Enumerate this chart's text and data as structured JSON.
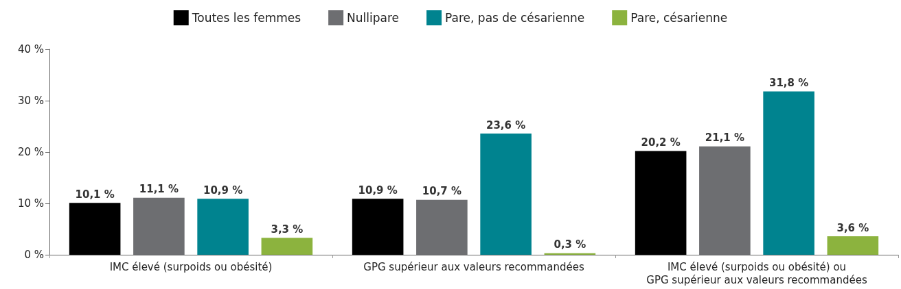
{
  "chart_data": {
    "type": "bar",
    "categories": [
      "IMC élevé (surpoids ou obésité)",
      "GPG supérieur aux valeurs recommandées",
      "IMC élevé (surpoids ou obésité) ou\nGPG supérieur aux valeurs recommandées"
    ],
    "series": [
      {
        "name": "Toutes les femmes",
        "color": "#000000",
        "values": [
          10.1,
          10.9,
          20.2
        ],
        "value_labels": [
          "10,1 %",
          "10,9 %",
          "20,2 %"
        ]
      },
      {
        "name": "Nullipare",
        "color": "#6d6e71",
        "values": [
          11.1,
          10.7,
          21.1
        ],
        "value_labels": [
          "11,1 %",
          "10,7 %",
          "21,1 %"
        ]
      },
      {
        "name": "Pare, pas de césarienne",
        "color": "#00838f",
        "values": [
          10.9,
          23.6,
          31.8
        ],
        "value_labels": [
          "10,9 %",
          "23,6 %",
          "31,8 %"
        ]
      },
      {
        "name": "Pare, césarienne",
        "color": "#8cb33e",
        "values": [
          3.3,
          0.3,
          3.6
        ],
        "value_labels": [
          "3,3 %",
          "0,3 %",
          "3,6 %"
        ]
      }
    ],
    "ylim": [
      0,
      40
    ],
    "yticks": [
      {
        "value": 0,
        "label": "0 %"
      },
      {
        "value": 10,
        "label": "10 %"
      },
      {
        "value": 20,
        "label": "20 %"
      },
      {
        "value": 30,
        "label": "30 %"
      },
      {
        "value": 40,
        "label": "40 %"
      }
    ],
    "grid": false,
    "legend": "top"
  }
}
